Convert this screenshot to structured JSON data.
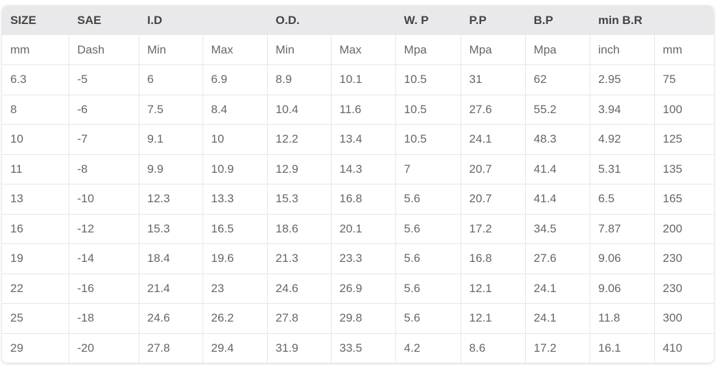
{
  "headers": [
    "SIZE",
    "SAE",
    "I.D",
    "O.D.",
    "W. P",
    "P.P",
    "B.P",
    "min B.R"
  ],
  "units": [
    "mm",
    "Dash",
    "Min",
    "Max",
    "Min",
    "Max",
    "Mpa",
    "Mpa",
    "Mpa",
    "inch",
    "mm"
  ],
  "rows": [
    [
      "6.3",
      "-5",
      "6",
      "6.9",
      "8.9",
      "10.1",
      "10.5",
      "31",
      "62",
      "2.95",
      "75"
    ],
    [
      "8",
      "-6",
      "7.5",
      "8.4",
      "10.4",
      "11.6",
      "10.5",
      "27.6",
      "55.2",
      "3.94",
      "100"
    ],
    [
      "10",
      "-7",
      "9.1",
      "10",
      "12.2",
      "13.4",
      "10.5",
      "24.1",
      "48.3",
      "4.92",
      "125"
    ],
    [
      "11",
      "-8",
      "9.9",
      "10.9",
      "12.9",
      "14.3",
      "7",
      "20.7",
      "41.4",
      "5.31",
      "135"
    ],
    [
      "13",
      "-10",
      "12.3",
      "13.3",
      "15.3",
      "16.8",
      "5.6",
      "20.7",
      "41.4",
      "6.5",
      "165"
    ],
    [
      "16",
      "-12",
      "15.3",
      "16.5",
      "18.6",
      "20.1",
      "5.6",
      "17.2",
      "34.5",
      "7.87",
      "200"
    ],
    [
      "19",
      "-14",
      "18.4",
      "19.6",
      "21.3",
      "23.3",
      "5.6",
      "16.8",
      "27.6",
      "9.06",
      "230"
    ],
    [
      "22",
      "-16",
      "21.4",
      "23",
      "24.6",
      "26.9",
      "5.6",
      "12.1",
      "24.1",
      "9.06",
      "230"
    ],
    [
      "25",
      "-18",
      "24.6",
      "26.2",
      "27.8",
      "29.8",
      "5.6",
      "12.1",
      "24.1",
      "11.8",
      "300"
    ],
    [
      "29",
      "-20",
      "27.8",
      "29.4",
      "31.9",
      "33.5",
      "4.2",
      "8.6",
      "17.2",
      "16.1",
      "410"
    ]
  ]
}
